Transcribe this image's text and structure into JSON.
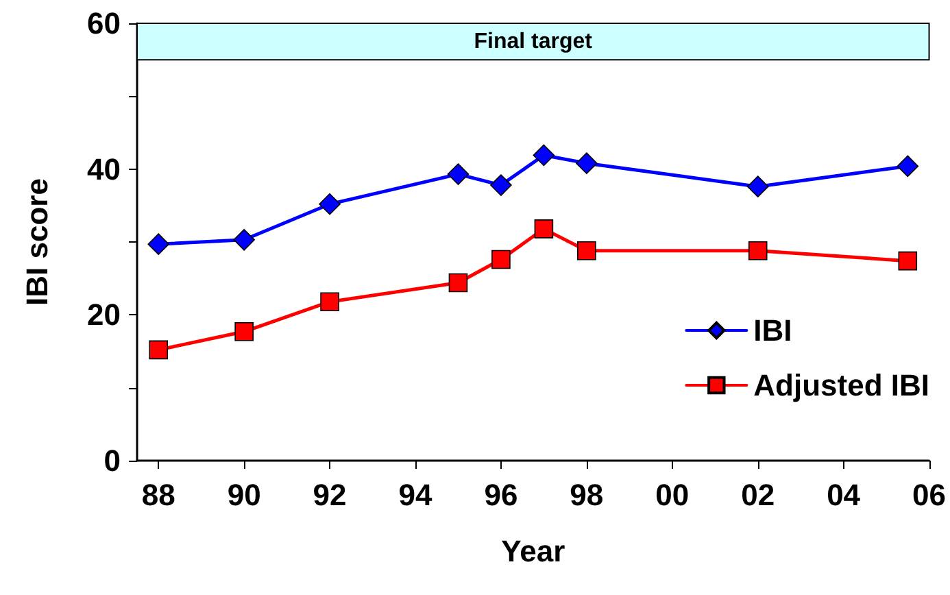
{
  "chart_data": {
    "type": "line",
    "xlabel": "Year",
    "ylabel": "IBI score",
    "xlim": [
      1987.5,
      2006
    ],
    "xticks": [
      {
        "value": 1988,
        "label": "88"
      },
      {
        "value": 1990,
        "label": "90"
      },
      {
        "value": 1992,
        "label": "92"
      },
      {
        "value": 1994,
        "label": "94"
      },
      {
        "value": 1996,
        "label": "96"
      },
      {
        "value": 1998,
        "label": "98"
      },
      {
        "value": 2000,
        "label": "00"
      },
      {
        "value": 2002,
        "label": "02"
      },
      {
        "value": 2004,
        "label": "04"
      },
      {
        "value": 2006,
        "label": "06"
      }
    ],
    "ylim": [
      0,
      60
    ],
    "yticks": [
      0,
      {
        "value": 10,
        "label": null
      },
      20,
      {
        "value": 30,
        "label": null
      },
      40,
      {
        "value": 50,
        "label": null
      },
      60
    ],
    "x": [
      1988,
      1990,
      1992,
      1995,
      1996,
      1997,
      1998,
      2002,
      2005.5
    ],
    "series": [
      {
        "name": "IBI",
        "color": "#0000ff",
        "marker": "diamond",
        "values": [
          29.7,
          30.3,
          35.2,
          39.3,
          37.8,
          41.9,
          40.8,
          37.6,
          40.4
        ]
      },
      {
        "name": "Adjusted IBI",
        "color": "#ff0000",
        "marker": "square",
        "values": [
          15.2,
          17.7,
          21.8,
          24.4,
          27.6,
          31.8,
          28.8,
          28.8,
          27.4
        ]
      }
    ],
    "bands": [
      {
        "axis": "y",
        "from": 55,
        "to": 60,
        "label": "Final target",
        "color": "#ccffff"
      }
    ],
    "legend": "right",
    "grid": false,
    "line_style": "solid"
  }
}
